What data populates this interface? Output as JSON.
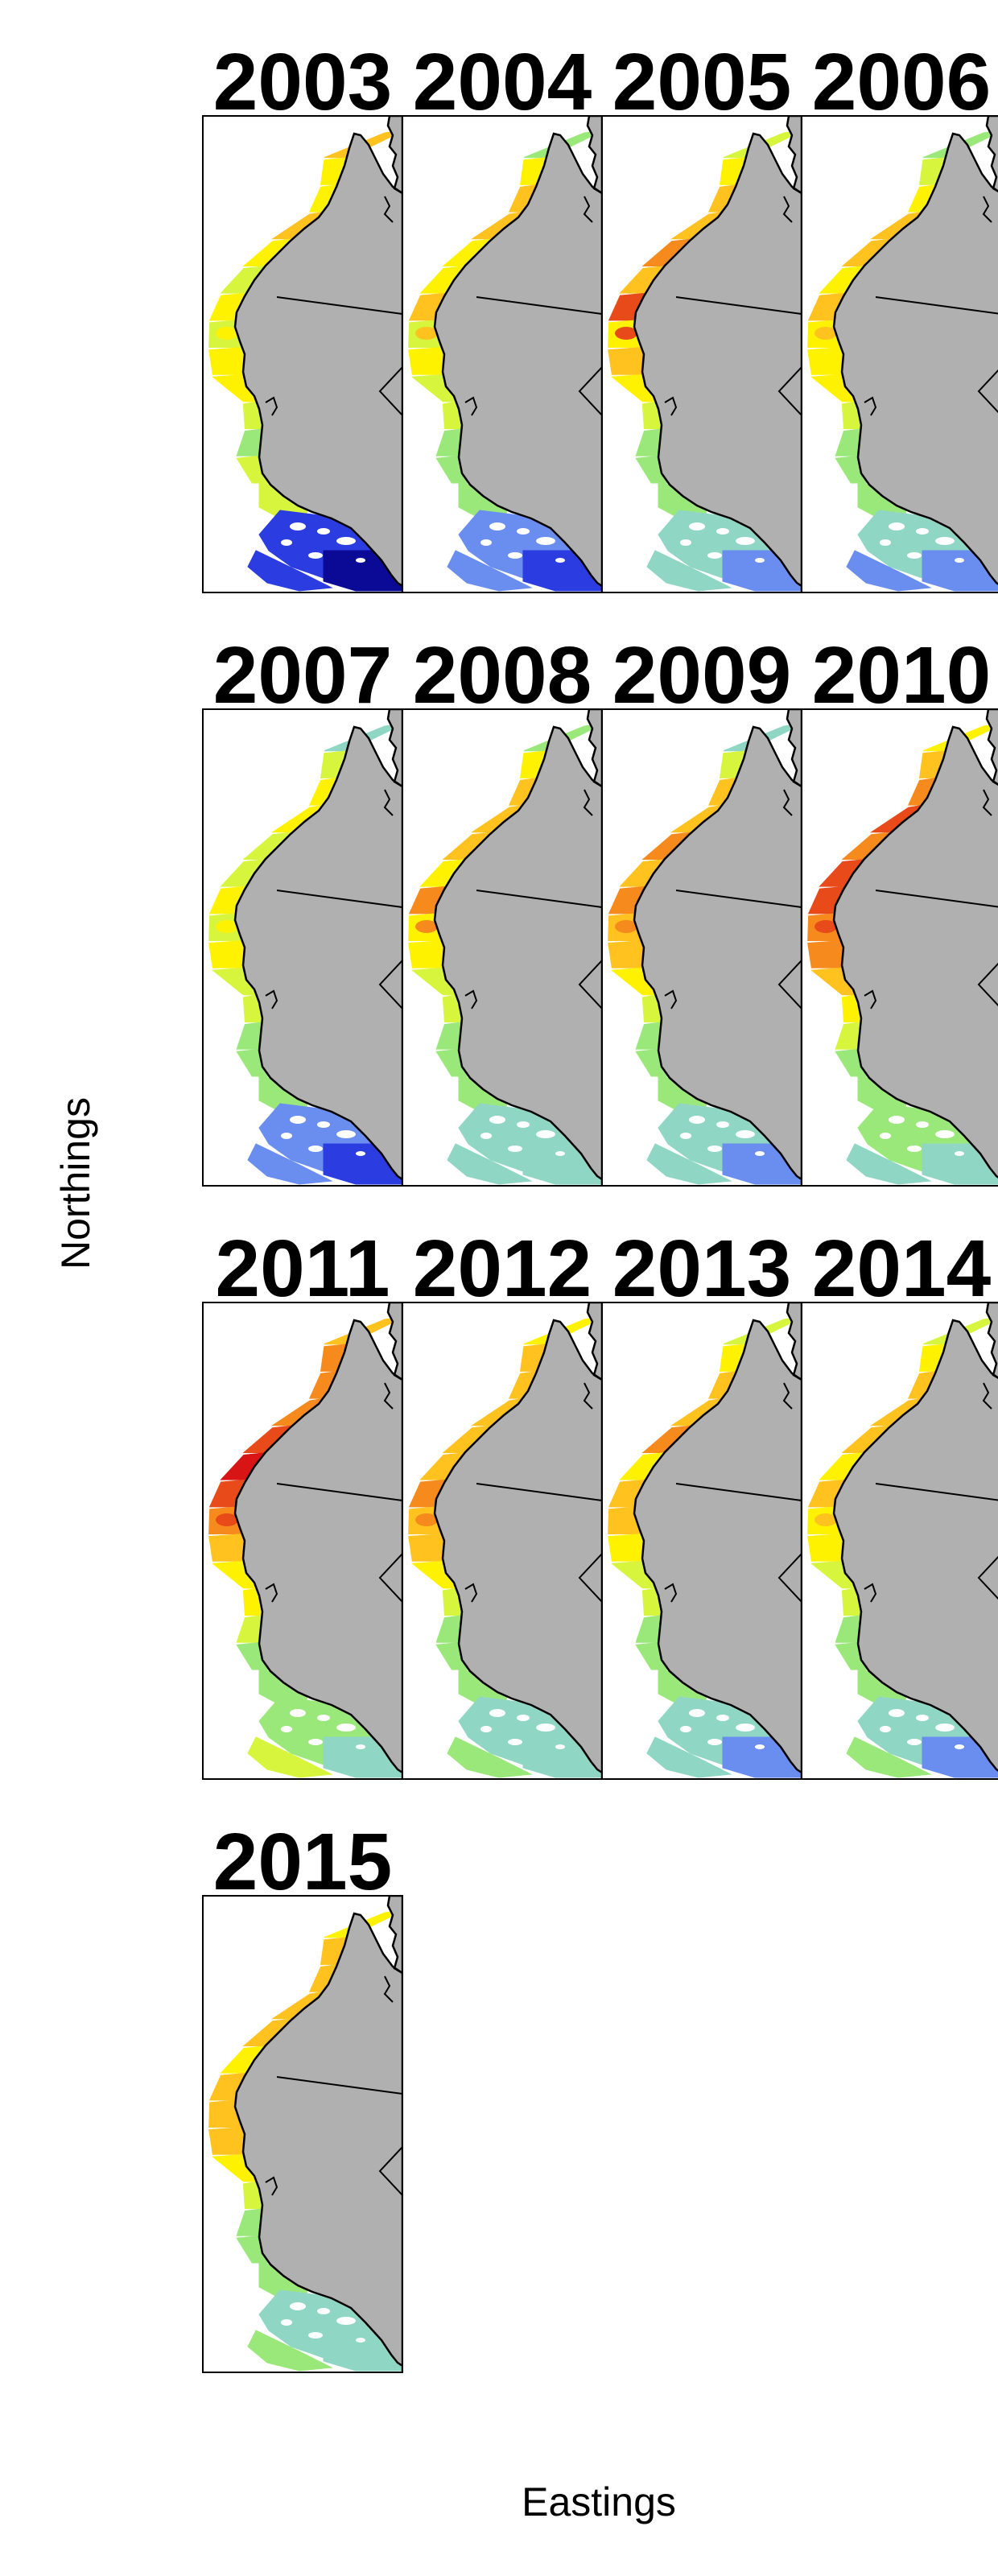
{
  "figure": {
    "ylabel": "Northings",
    "xlabel": "Eastings",
    "color_ramp": [
      "#0a0a96",
      "#2b3ce0",
      "#6a8ef0",
      "#8fd6c4",
      "#9ae87a",
      "#d6f53c",
      "#fff200",
      "#ffc21e",
      "#f78a1c",
      "#e84a1a",
      "#d81414"
    ],
    "land_color": "#b0b0b0",
    "panels": [
      {
        "year": "2003",
        "levels": [
          7,
          6,
          6,
          7,
          6,
          5,
          6,
          5,
          6,
          6,
          5,
          4,
          5,
          1,
          0,
          1
        ]
      },
      {
        "year": "2004",
        "levels": [
          4,
          6,
          7,
          7,
          6,
          6,
          7,
          5,
          6,
          5,
          5,
          4,
          4,
          2,
          1,
          2
        ]
      },
      {
        "year": "2005",
        "levels": [
          5,
          6,
          7,
          7,
          8,
          7,
          9,
          6,
          7,
          6,
          5,
          4,
          4,
          3,
          2,
          3
        ]
      },
      {
        "year": "2006",
        "levels": [
          4,
          5,
          6,
          7,
          7,
          6,
          7,
          6,
          6,
          6,
          5,
          4,
          4,
          3,
          2,
          2
        ]
      },
      {
        "year": "2007",
        "levels": [
          3,
          5,
          6,
          6,
          5,
          5,
          6,
          5,
          6,
          5,
          5,
          4,
          4,
          2,
          1,
          2
        ]
      },
      {
        "year": "2008",
        "levels": [
          4,
          6,
          7,
          7,
          7,
          6,
          8,
          6,
          6,
          5,
          5,
          4,
          4,
          3,
          3,
          3
        ]
      },
      {
        "year": "2009",
        "levels": [
          3,
          5,
          7,
          7,
          8,
          7,
          8,
          7,
          7,
          6,
          5,
          4,
          4,
          3,
          2,
          3
        ]
      },
      {
        "year": "2010",
        "levels": [
          6,
          7,
          8,
          9,
          8,
          9,
          9,
          8,
          8,
          7,
          6,
          5,
          4,
          4,
          3,
          3
        ]
      },
      {
        "year": "2011",
        "levels": [
          7,
          8,
          8,
          8,
          9,
          10,
          9,
          8,
          7,
          6,
          6,
          5,
          4,
          4,
          3,
          5
        ]
      },
      {
        "year": "2012",
        "levels": [
          6,
          7,
          7,
          7,
          7,
          7,
          8,
          7,
          7,
          6,
          5,
          4,
          4,
          3,
          3,
          4
        ]
      },
      {
        "year": "2013",
        "levels": [
          5,
          6,
          7,
          7,
          8,
          6,
          7,
          7,
          6,
          5,
          5,
          4,
          4,
          3,
          2,
          3
        ]
      },
      {
        "year": "2014",
        "levels": [
          5,
          6,
          7,
          7,
          7,
          6,
          7,
          6,
          6,
          5,
          5,
          4,
          4,
          3,
          2,
          4
        ]
      },
      {
        "year": "2015",
        "levels": [
          6,
          7,
          7,
          7,
          7,
          6,
          7,
          7,
          7,
          6,
          5,
          4,
          4,
          3,
          3,
          4
        ]
      }
    ]
  }
}
